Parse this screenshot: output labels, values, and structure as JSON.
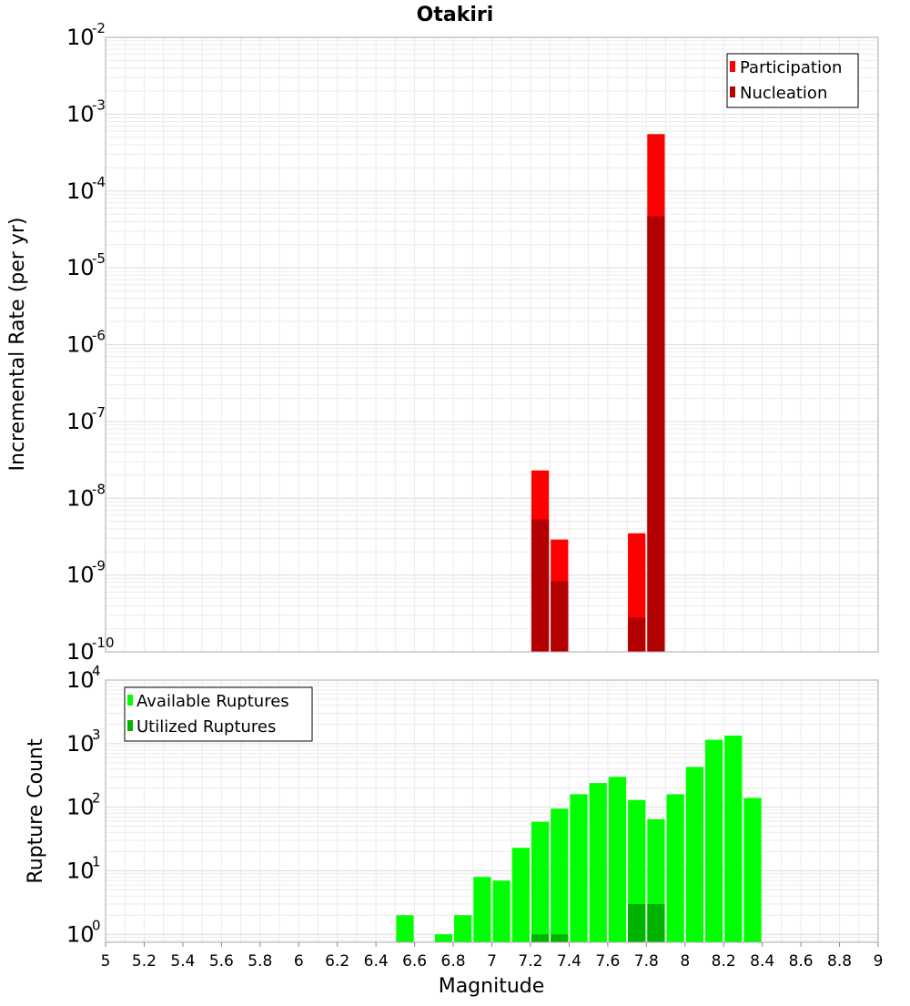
{
  "chart_data": [
    {
      "type": "bar",
      "title": "Otakiri",
      "ylabel": "Incremental Rate (per yr)",
      "xlabel": "",
      "yscale": "log",
      "ylim": [
        1e-10,
        0.01
      ],
      "xlim": [
        5,
        9
      ],
      "bin_width": 0.1,
      "grid": true,
      "legend": "top-right",
      "ytick_exponents": [
        "-2",
        "-3",
        "-4",
        "-5",
        "-6",
        "-7",
        "-8",
        "-9",
        "-10"
      ],
      "ytick_base": "10",
      "series": [
        {
          "name": "Participation",
          "color": "#ff0000",
          "points": [
            {
              "x": 7.25,
              "y": 2.3e-08
            },
            {
              "x": 7.35,
              "y": 2.9e-09
            },
            {
              "x": 7.75,
              "y": 3.5e-09
            },
            {
              "x": 7.85,
              "y": 0.00055
            }
          ]
        },
        {
          "name": "Nucleation",
          "color": "#b30000",
          "points": [
            {
              "x": 7.25,
              "y": 5.3e-09
            },
            {
              "x": 7.35,
              "y": 8.3e-10
            },
            {
              "x": 7.75,
              "y": 2.8e-10
            },
            {
              "x": 7.85,
              "y": 4.7e-05
            }
          ]
        }
      ]
    },
    {
      "type": "bar",
      "title": "",
      "ylabel": "Rupture Count",
      "xlabel": "Magnitude",
      "yscale": "log",
      "ylim": [
        0.75,
        10000
      ],
      "xlim": [
        5,
        9
      ],
      "bin_width": 0.1,
      "grid": true,
      "legend": "top-left",
      "ytick_exponents": [
        "4",
        "3",
        "2",
        "1",
        "0"
      ],
      "ytick_base": "10",
      "x_ticks": [
        "5",
        "5.2",
        "5.4",
        "5.6",
        "5.8",
        "6",
        "6.2",
        "6.4",
        "6.6",
        "6.8",
        "7",
        "7.2",
        "7.4",
        "7.6",
        "7.8",
        "8",
        "8.2",
        "8.4",
        "8.6",
        "8.8",
        "9"
      ],
      "series": [
        {
          "name": "Available Ruptures",
          "color": "#00ff00",
          "points": [
            {
              "x": 6.55,
              "y": 2
            },
            {
              "x": 6.75,
              "y": 1
            },
            {
              "x": 6.85,
              "y": 2
            },
            {
              "x": 6.95,
              "y": 8
            },
            {
              "x": 7.05,
              "y": 7
            },
            {
              "x": 7.15,
              "y": 23
            },
            {
              "x": 7.25,
              "y": 59
            },
            {
              "x": 7.35,
              "y": 95
            },
            {
              "x": 7.45,
              "y": 160
            },
            {
              "x": 7.55,
              "y": 240
            },
            {
              "x": 7.65,
              "y": 300
            },
            {
              "x": 7.75,
              "y": 130
            },
            {
              "x": 7.85,
              "y": 65
            },
            {
              "x": 7.95,
              "y": 160
            },
            {
              "x": 8.05,
              "y": 430
            },
            {
              "x": 8.15,
              "y": 1150
            },
            {
              "x": 8.25,
              "y": 1340
            },
            {
              "x": 8.35,
              "y": 140
            }
          ]
        },
        {
          "name": "Utilized Ruptures",
          "color": "#00b300",
          "points": [
            {
              "x": 7.25,
              "y": 1
            },
            {
              "x": 7.35,
              "y": 1
            },
            {
              "x": 7.75,
              "y": 3
            },
            {
              "x": 7.85,
              "y": 3
            }
          ]
        }
      ]
    }
  ]
}
